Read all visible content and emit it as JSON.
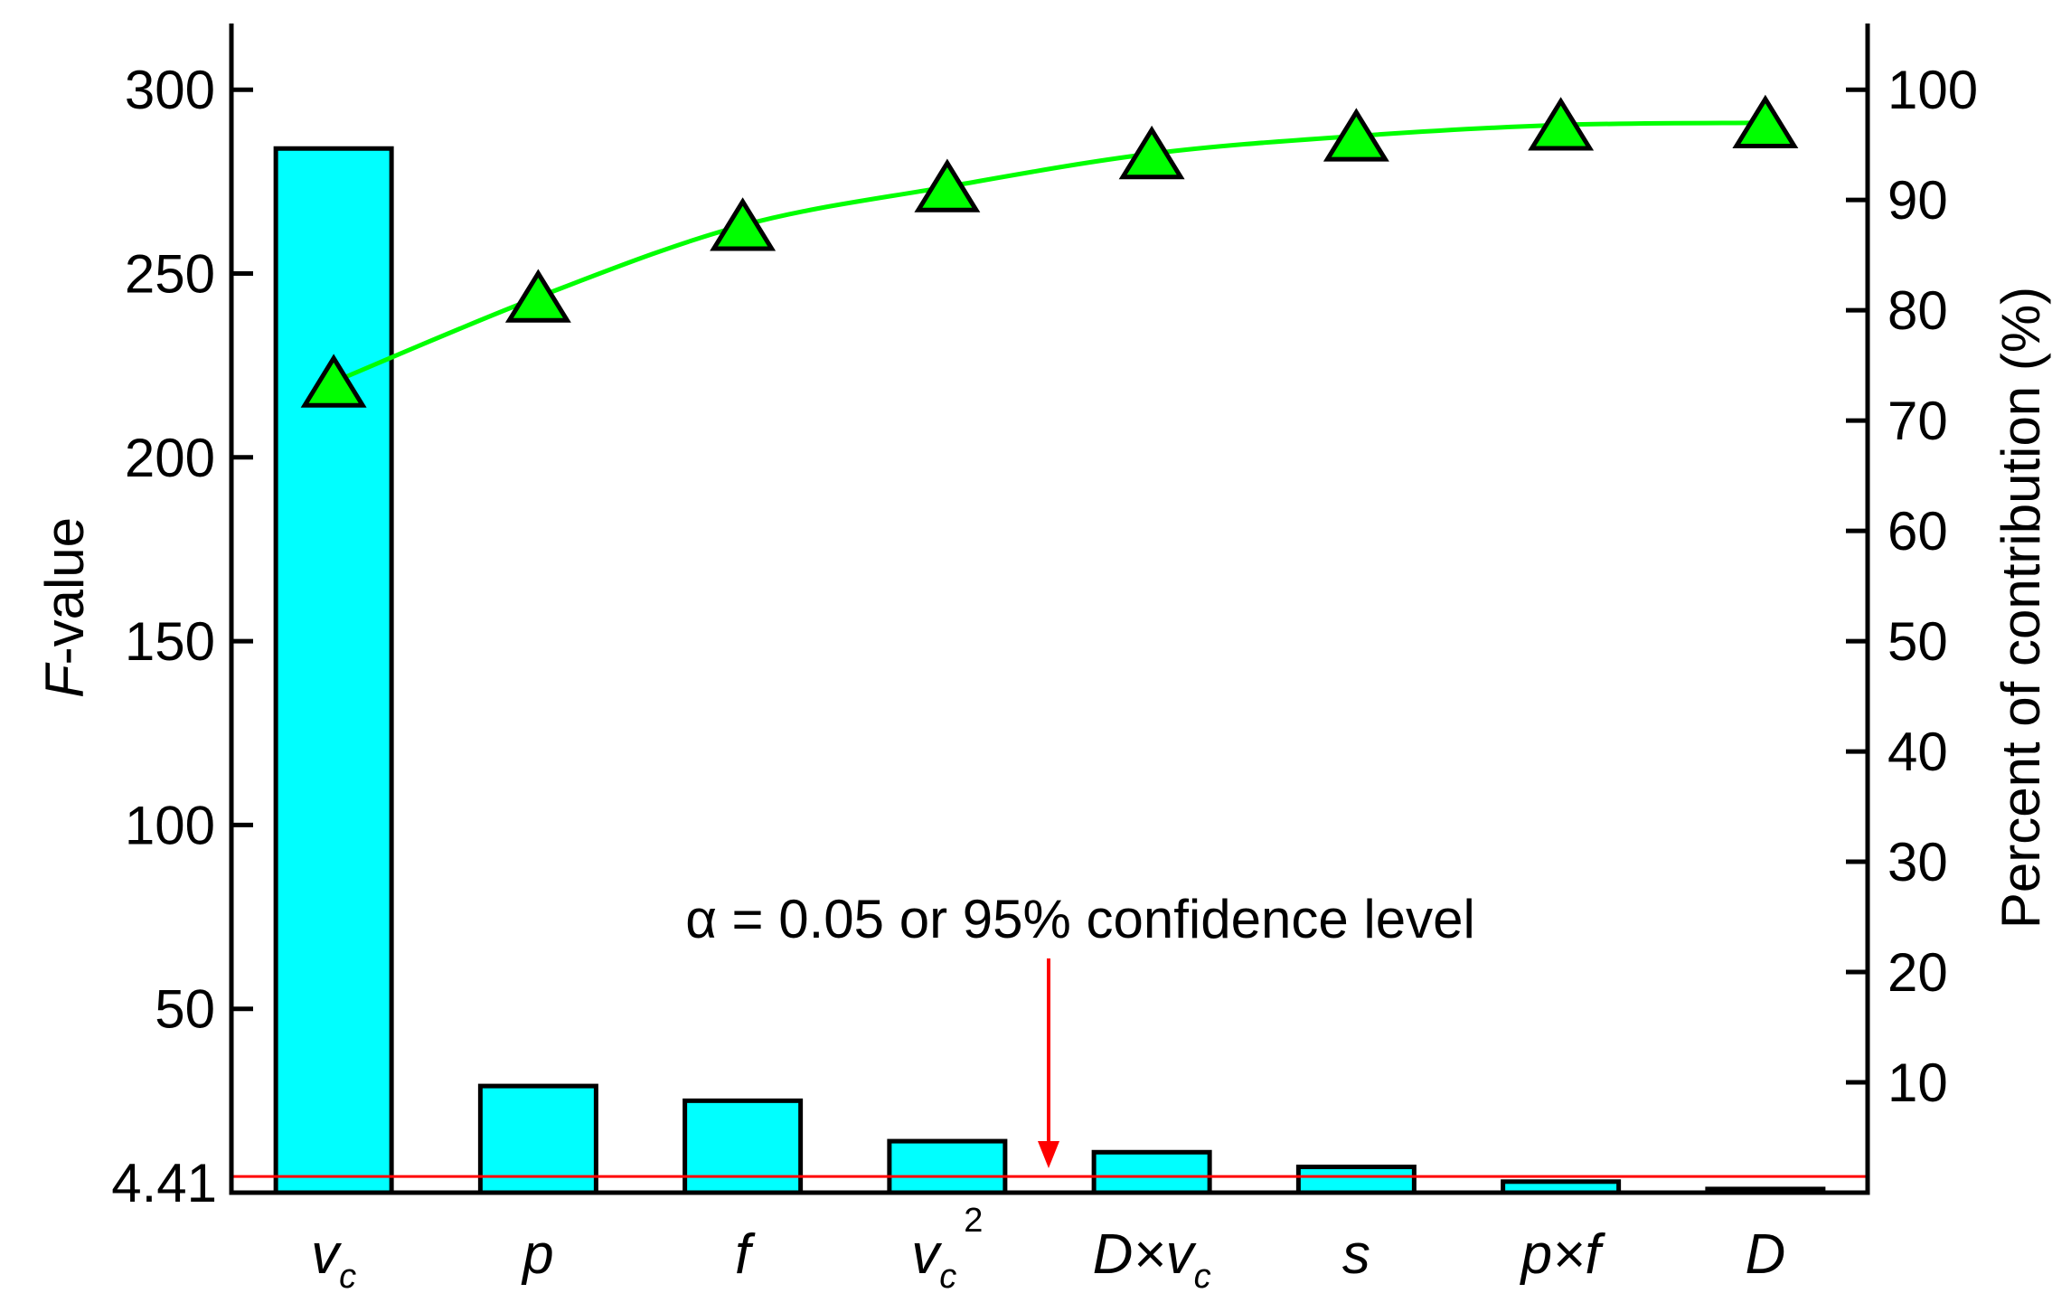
{
  "chart_data": {
    "type": "bar",
    "categories": [
      "v_c",
      "p",
      "f",
      "v_c^2",
      "D×v_c",
      "s",
      "p×f",
      "D"
    ],
    "category_labels": [
      {
        "base": "v",
        "sub": "c",
        "sup": ""
      },
      {
        "base": "p",
        "sub": "",
        "sup": ""
      },
      {
        "base": "f",
        "sub": "",
        "sup": ""
      },
      {
        "base": "v",
        "sub": "c",
        "sup": "2"
      },
      {
        "base": "D×v",
        "sub": "c",
        "sup": ""
      },
      {
        "base": "s",
        "sub": "",
        "sup": ""
      },
      {
        "base": "p×f",
        "sub": "",
        "sup": ""
      },
      {
        "base": "D",
        "sub": "",
        "sup": ""
      }
    ],
    "series": [
      {
        "type": "bar",
        "axis": "left",
        "values": [
          284,
          29,
          25,
          14,
          11,
          7,
          3,
          1
        ]
      },
      {
        "type": "line",
        "axis": "right",
        "values": [
          73.5,
          81.2,
          87.7,
          91.2,
          94.2,
          95.8,
          96.8,
          97.0
        ]
      }
    ],
    "ylabel_left": {
      "italic": "F",
      "rest": "-value"
    },
    "ylabel_right": "Percent of contribution (%)",
    "ylim_left": [
      0,
      318
    ],
    "ylim_right": [
      0,
      106
    ],
    "yticks_left": [
      300,
      250,
      200,
      150,
      100,
      50
    ],
    "yticks_left_labels": [
      "300",
      "250",
      "200",
      "150",
      "100",
      "50"
    ],
    "yticks_right": [
      100,
      90,
      80,
      70,
      60,
      50,
      40,
      30,
      20,
      10
    ],
    "yticks_right_labels": [
      "100",
      "90",
      "80",
      "70",
      "60",
      "50",
      "40",
      "30",
      "20",
      "10"
    ],
    "threshold": {
      "value": 4.41,
      "label": "4.41",
      "annotation": "α = 0.05 or 95% confidence level",
      "color": "#ff0000"
    },
    "colors": {
      "bar_fill": "#00ffff",
      "bar_stroke": "#000000",
      "line": "#00ff00",
      "marker_fill": "#00ff00",
      "marker_stroke": "#000000",
      "axis": "#000000"
    },
    "grid": false
  }
}
